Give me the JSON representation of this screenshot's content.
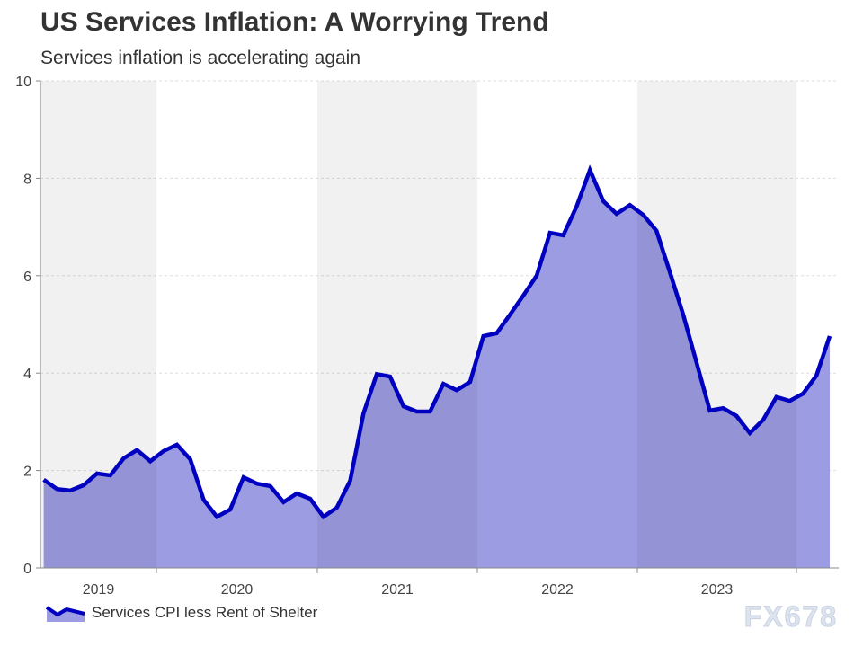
{
  "chart_data": {
    "type": "area",
    "title": "US Services Inflation: A Worrying Trend",
    "subtitle": "Services inflation is accelerating again",
    "xlabel": "",
    "ylabel": "",
    "ylim": [
      0,
      10
    ],
    "yticks": [
      "0",
      "2",
      "4",
      "6",
      "8",
      "10"
    ],
    "xticks": [
      "2019",
      "2020",
      "2021",
      "2022",
      "2023"
    ],
    "x_start": "2019-04",
    "x_end": "2024-03",
    "grid": true,
    "legend_position": "bottom-left",
    "series": [
      {
        "name": "Services CPI less Rent of Shelter",
        "color": "#0000c0",
        "fill": "#9c9ce2",
        "values": [
          1.81,
          1.62,
          1.59,
          1.7,
          1.94,
          1.9,
          2.25,
          2.42,
          2.19,
          2.4,
          2.53,
          2.23,
          1.4,
          1.05,
          1.2,
          1.86,
          1.73,
          1.68,
          1.35,
          1.53,
          1.42,
          1.05,
          1.24,
          1.79,
          3.17,
          3.98,
          3.93,
          3.32,
          3.21,
          3.21,
          3.78,
          3.65,
          3.82,
          4.76,
          4.82,
          5.2,
          5.59,
          6.0,
          6.88,
          6.83,
          7.42,
          8.17,
          7.53,
          7.27,
          7.45,
          7.25,
          6.92,
          6.07,
          5.2,
          4.22,
          3.23,
          3.28,
          3.12,
          2.77,
          3.04,
          3.51,
          3.43,
          3.58,
          3.95,
          4.76
        ]
      }
    ]
  },
  "watermark": "FX678"
}
